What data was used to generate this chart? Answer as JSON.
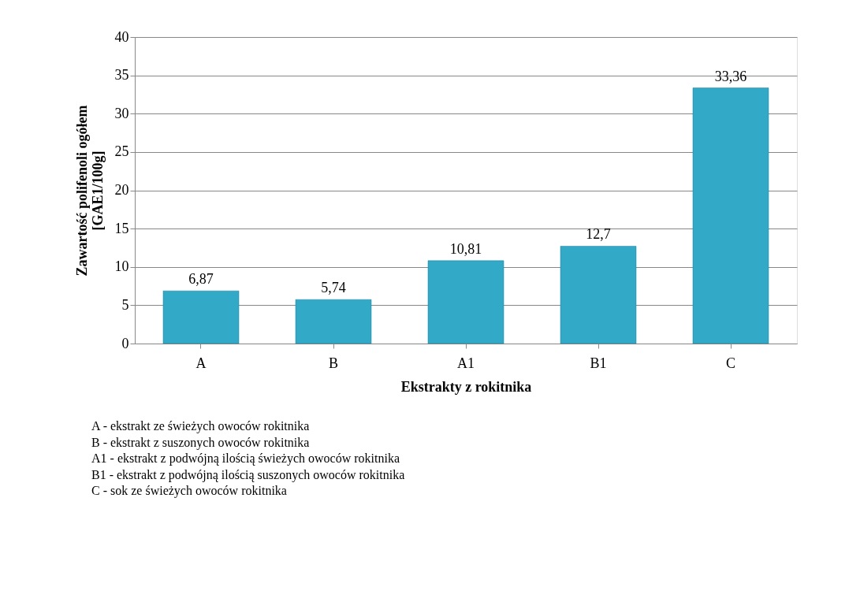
{
  "chart_data": {
    "type": "bar",
    "xlabel": "Ekstrakty z rokitnika",
    "ylabel": "Zawartość polifenoli ogółem [GAE1/100g]",
    "categories": [
      "A",
      "B",
      "A1",
      "B1",
      "C"
    ],
    "values": [
      6.87,
      5.74,
      10.81,
      12.7,
      33.36
    ],
    "value_labels": [
      "6,87",
      "5,74",
      "10,81",
      "12,7",
      "33,36"
    ],
    "color": "#31a9c7",
    "ylim": [
      0,
      40
    ],
    "yticks": [
      0,
      5,
      10,
      15,
      20,
      25,
      30,
      35,
      40
    ],
    "grid": "y",
    "annotations": [
      "A - ekstrakt ze świeżych owoców rokitnika",
      "B - ekstrakt  z suszonych owoców rokitnika",
      "A1 - ekstrakt z podwójną ilością świeżych owoców rokitnika",
      "B1 -  ekstrakt z podwójną ilością suszonych owoców rokitnika",
      "C - sok ze świeżych owoców rokitnika"
    ]
  }
}
